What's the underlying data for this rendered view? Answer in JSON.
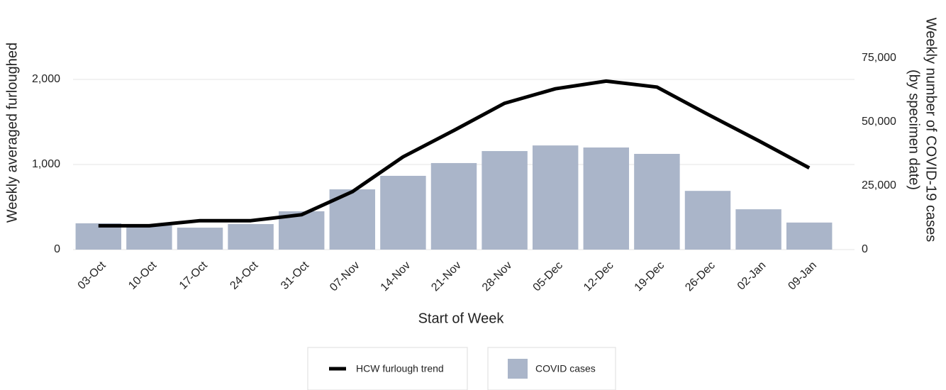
{
  "chart_data": {
    "type": "combo",
    "x_label": "Start of Week",
    "y_label": "Weekly averaged furloughed",
    "y2_label": [
      "Weekly number of COVID-19 cases",
      "(by specimen date)"
    ],
    "categories": [
      "03-Oct",
      "10-Oct",
      "17-Oct",
      "24-Oct",
      "31-Oct",
      "07-Nov",
      "14-Nov",
      "21-Nov",
      "28-Nov",
      "05-Dec",
      "12-Dec",
      "19-Dec",
      "26-Dec",
      "02-Jan",
      "09-Jan"
    ],
    "series": [
      {
        "name": "COVID cases",
        "type": "bar",
        "axis": "y2",
        "color": "#aab5c9",
        "values": [
          10300,
          9500,
          8600,
          10000,
          15000,
          23600,
          28900,
          33900,
          38600,
          40800,
          40000,
          37500,
          23000,
          15800,
          10600
        ]
      },
      {
        "name": "HCW furlough trend",
        "type": "line",
        "axis": "y",
        "color": "#000000",
        "values": [
          280,
          280,
          340,
          340,
          410,
          680,
          1090,
          1400,
          1720,
          1890,
          1980,
          1910,
          1590,
          1280,
          960
        ]
      }
    ],
    "legend_order": [
      1,
      0
    ],
    "ylim": [
      0,
      2850
    ],
    "yticks": [
      0,
      {
        "value": 1000,
        "label": "1,000"
      },
      {
        "value": 2000,
        "label": "2,000"
      }
    ],
    "y2lim": [
      0,
      95000
    ],
    "y2ticks": [
      0,
      {
        "value": 25000,
        "label": "25,000"
      },
      {
        "value": 50000,
        "label": "50,000"
      },
      {
        "value": 75000,
        "label": "75,000"
      }
    ],
    "grid": true
  }
}
